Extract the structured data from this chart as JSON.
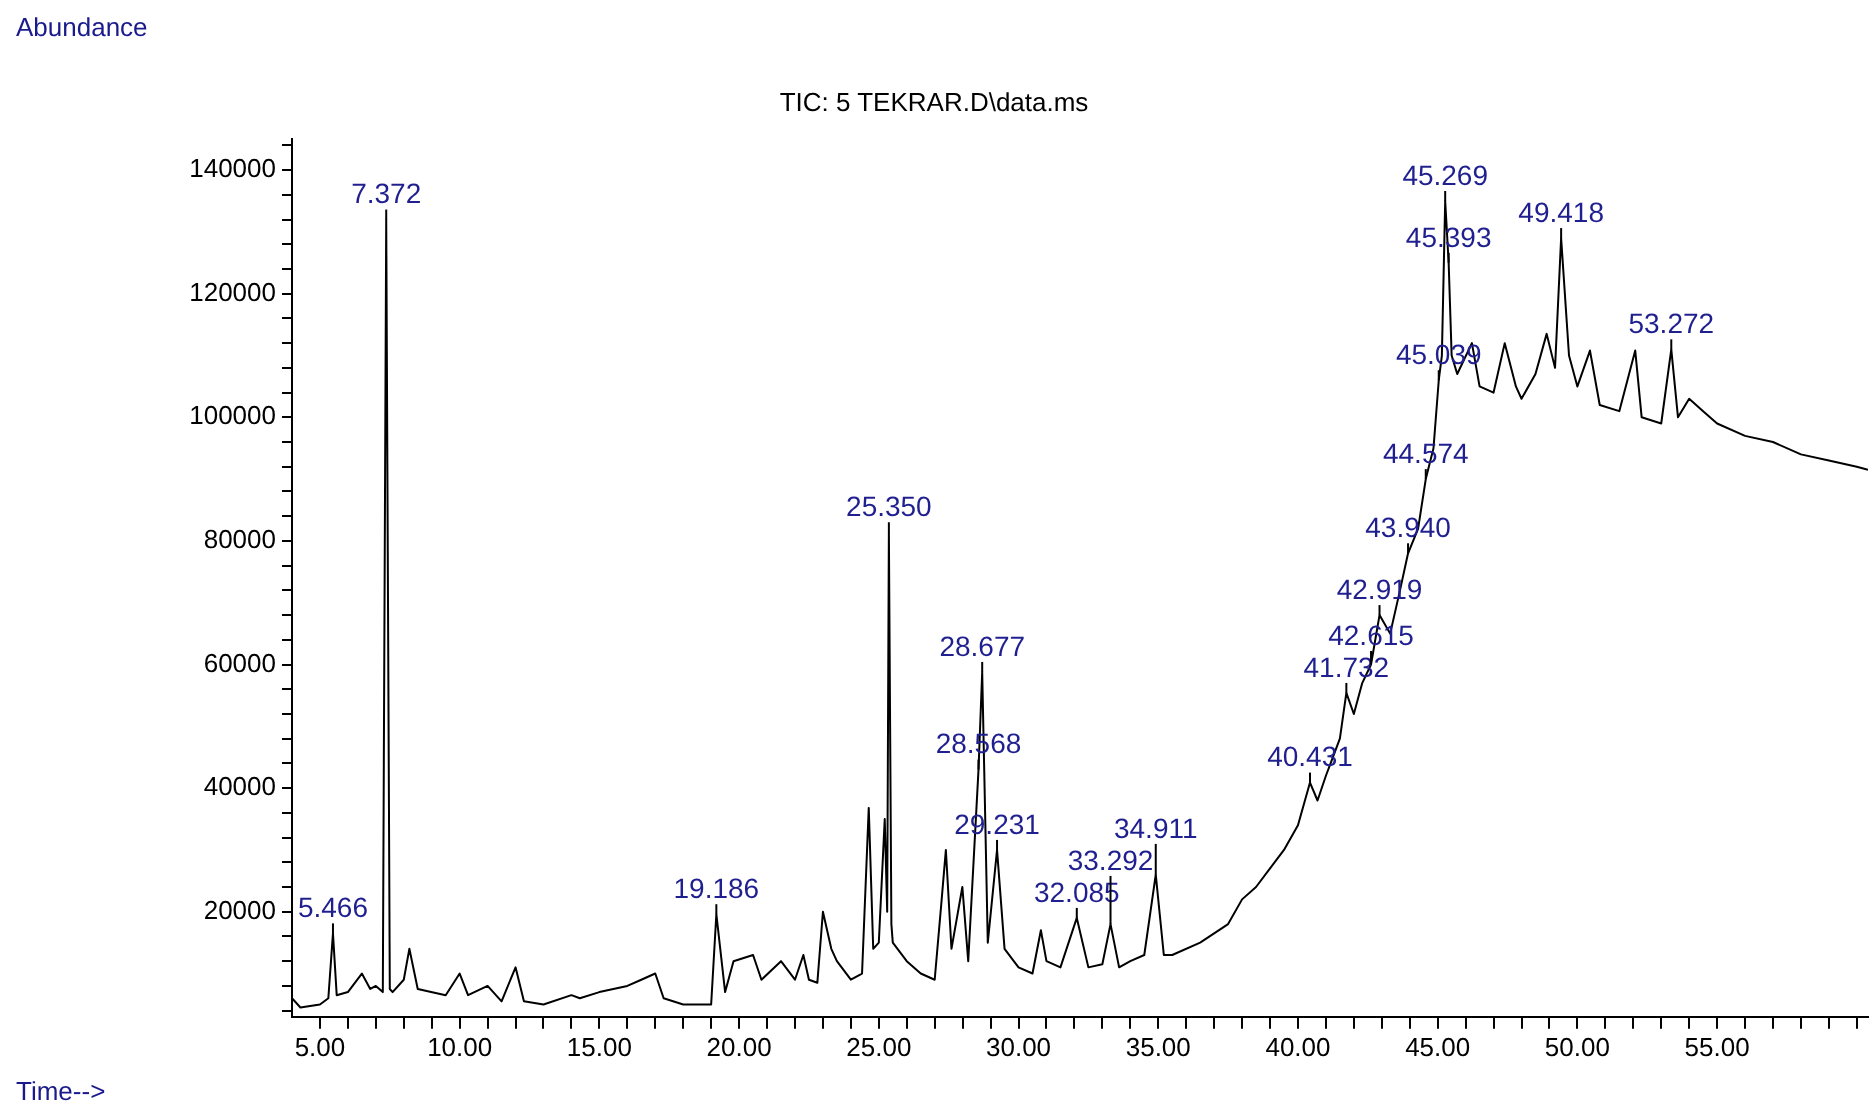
{
  "chart_data": {
    "type": "line",
    "title": "TIC: 5 TEKRAR.D\\data.ms",
    "xlabel": "Time-->",
    "ylabel": "Abundance",
    "x": [
      4.0,
      4.3,
      5.0,
      5.3,
      5.466,
      5.6,
      6.0,
      6.5,
      6.8,
      7.0,
      7.25,
      7.372,
      7.5,
      7.6,
      8.0,
      8.2,
      8.5,
      9.5,
      10.0,
      10.3,
      11.0,
      11.5,
      12.0,
      12.3,
      13.0,
      14.0,
      14.3,
      15.0,
      16.0,
      16.5,
      17.0,
      17.3,
      18.0,
      19.0,
      19.186,
      19.5,
      19.8,
      20.5,
      20.8,
      21.5,
      22.0,
      22.3,
      22.5,
      22.8,
      23.0,
      23.3,
      23.5,
      24.0,
      24.4,
      24.64,
      24.8,
      25.0,
      25.212,
      25.3,
      25.36,
      25.45,
      25.5,
      26.0,
      26.5,
      27.0,
      27.25,
      27.4,
      27.6,
      27.99,
      28.2,
      28.568,
      28.7,
      28.9,
      29.231,
      29.5,
      30.0,
      30.5,
      30.8,
      31.0,
      31.5,
      32.085,
      32.5,
      33.0,
      33.292,
      33.6,
      34.0,
      34.5,
      34.911,
      35.2,
      35.5,
      36.5,
      37.5,
      38.0,
      38.5,
      39.0,
      39.5,
      40.0,
      40.431,
      40.7,
      41.0,
      41.5,
      41.732,
      42.0,
      42.3,
      42.615,
      42.919,
      43.3,
      43.651,
      43.94,
      44.3,
      44.574,
      44.85,
      45.039,
      45.15,
      45.269,
      45.393,
      45.5,
      45.7,
      46.225,
      46.5,
      47.0,
      47.4,
      47.8,
      48.0,
      48.5,
      48.9,
      49.2,
      49.418,
      49.7,
      50.0,
      50.45,
      50.8,
      51.5,
      52.07,
      52.3,
      53.0,
      53.36,
      53.6,
      54.0,
      54.5,
      55.0,
      56.0,
      57.0,
      58.0,
      59.0,
      60.0,
      60.4
    ],
    "values": [
      6000,
      4500,
      5000,
      6000,
      16500,
      6500,
      7000,
      10000,
      7500,
      8000,
      7000,
      132000,
      7500,
      7000,
      9000,
      14000,
      7500,
      6500,
      10000,
      6500,
      8000,
      5500,
      11000,
      5500,
      5000,
      6500,
      6000,
      7000,
      8000,
      9000,
      10000,
      6000,
      5000,
      5000,
      19600,
      7000,
      12000,
      13000,
      9000,
      12000,
      9000,
      13000,
      9000,
      8500,
      20000,
      14000,
      12000,
      9000,
      10000,
      36800,
      14000,
      15000,
      35000,
      20000,
      81400,
      18000,
      15000,
      12000,
      10000,
      9000,
      22000,
      30000,
      14000,
      24000,
      12000,
      43000,
      58800,
      15000,
      30000,
      14000,
      11000,
      10000,
      17000,
      12000,
      11000,
      19000,
      11000,
      11500,
      18000,
      11000,
      12000,
      13000,
      26000,
      13000,
      13000,
      15000,
      18000,
      22000,
      24000,
      27000,
      30000,
      34000,
      40900,
      38000,
      42000,
      48000,
      55400,
      52000,
      57000,
      60000,
      68000,
      65000,
      72000,
      78000,
      82000,
      90000,
      95000,
      106000,
      110000,
      135000,
      125000,
      110000,
      107000,
      112000,
      105000,
      104000,
      112000,
      105000,
      103000,
      107000,
      113500,
      108000,
      129000,
      110000,
      105000,
      110800,
      102000,
      101000,
      110800,
      100000,
      99000,
      111000,
      100000,
      103000,
      101000,
      99000,
      97000,
      96000,
      94000,
      93000,
      92000,
      91500
    ],
    "color": "#000000",
    "marker": "none",
    "line_style": "solid",
    "legend": false,
    "grid": false,
    "xlim": [
      4,
      60.4
    ],
    "ylim": [
      3000,
      145000
    ],
    "xticks": [
      {
        "value": 5,
        "label": "5.00"
      },
      {
        "value": 6,
        "label": null
      },
      {
        "value": 7,
        "label": null
      },
      {
        "value": 8,
        "label": null
      },
      {
        "value": 9,
        "label": null
      },
      {
        "value": 10,
        "label": "10.00"
      },
      {
        "value": 11,
        "label": null
      },
      {
        "value": 12,
        "label": null
      },
      {
        "value": 13,
        "label": null
      },
      {
        "value": 14,
        "label": null
      },
      {
        "value": 15,
        "label": "15.00"
      },
      {
        "value": 16,
        "label": null
      },
      {
        "value": 17,
        "label": null
      },
      {
        "value": 18,
        "label": null
      },
      {
        "value": 19,
        "label": null
      },
      {
        "value": 20,
        "label": "20.00"
      },
      {
        "value": 21,
        "label": null
      },
      {
        "value": 22,
        "label": null
      },
      {
        "value": 23,
        "label": null
      },
      {
        "value": 24,
        "label": null
      },
      {
        "value": 25,
        "label": "25.00"
      },
      {
        "value": 26,
        "label": null
      },
      {
        "value": 27,
        "label": null
      },
      {
        "value": 28,
        "label": null
      },
      {
        "value": 29,
        "label": null
      },
      {
        "value": 30,
        "label": "30.00"
      },
      {
        "value": 31,
        "label": null
      },
      {
        "value": 32,
        "label": null
      },
      {
        "value": 33,
        "label": null
      },
      {
        "value": 34,
        "label": null
      },
      {
        "value": 35,
        "label": "35.00"
      },
      {
        "value": 36,
        "label": null
      },
      {
        "value": 37,
        "label": null
      },
      {
        "value": 38,
        "label": null
      },
      {
        "value": 39,
        "label": null
      },
      {
        "value": 40,
        "label": "40.00"
      },
      {
        "value": 41,
        "label": null
      },
      {
        "value": 42,
        "label": null
      },
      {
        "value": 43,
        "label": null
      },
      {
        "value": 44,
        "label": null
      },
      {
        "value": 45,
        "label": "45.00"
      },
      {
        "value": 46,
        "label": null
      },
      {
        "value": 47,
        "label": null
      },
      {
        "value": 48,
        "label": null
      },
      {
        "value": 49,
        "label": null
      },
      {
        "value": 50,
        "label": "50.00"
      },
      {
        "value": 51,
        "label": null
      },
      {
        "value": 52,
        "label": null
      },
      {
        "value": 53,
        "label": null
      },
      {
        "value": 54,
        "label": null
      },
      {
        "value": 55,
        "label": "55.00"
      },
      {
        "value": 56,
        "label": null
      },
      {
        "value": 57,
        "label": null
      },
      {
        "value": 58,
        "label": null
      },
      {
        "value": 59,
        "label": null
      },
      {
        "value": 60,
        "label": null
      }
    ],
    "yticks": [
      {
        "value": 4000,
        "label": null
      },
      {
        "value": 8000,
        "label": null
      },
      {
        "value": 12000,
        "label": null
      },
      {
        "value": 16000,
        "label": null
      },
      20000,
      {
        "value": 24000,
        "label": null
      },
      {
        "value": 28000,
        "label": null
      },
      {
        "value": 32000,
        "label": null
      },
      {
        "value": 36000,
        "label": null
      },
      40000,
      {
        "value": 44000,
        "label": null
      },
      {
        "value": 48000,
        "label": null
      },
      {
        "value": 52000,
        "label": null
      },
      {
        "value": 56000,
        "label": null
      },
      60000,
      {
        "value": 64000,
        "label": null
      },
      {
        "value": 68000,
        "label": null
      },
      {
        "value": 72000,
        "label": null
      },
      {
        "value": 76000,
        "label": null
      },
      80000,
      {
        "value": 84000,
        "label": null
      },
      {
        "value": 88000,
        "label": null
      },
      {
        "value": 92000,
        "label": null
      },
      {
        "value": 96000,
        "label": null
      },
      100000,
      {
        "value": 104000,
        "label": null
      },
      {
        "value": 108000,
        "label": null
      },
      {
        "value": 112000,
        "label": null
      },
      {
        "value": 116000,
        "label": null
      },
      120000,
      {
        "value": 124000,
        "label": null
      },
      {
        "value": 128000,
        "label": null
      },
      {
        "value": 132000,
        "label": null
      },
      {
        "value": 136000,
        "label": null
      },
      140000,
      {
        "value": 144000,
        "label": null
      }
    ],
    "annotations": [
      {
        "text": "5.466",
        "x": 5.466,
        "y": 16500
      },
      {
        "text": "7.372",
        "x": 7.372,
        "y": 132000
      },
      {
        "text": "19.186",
        "x": 19.186,
        "y": 19600
      },
      {
        "text": "25.350",
        "x": 25.36,
        "y": 81400
      },
      {
        "text": "28.568",
        "x": 28.568,
        "y": 43000
      },
      {
        "text": "28.677",
        "x": 28.7,
        "y": 58800
      },
      {
        "text": "29.231",
        "x": 29.231,
        "y": 30000
      },
      {
        "text": "32.085",
        "x": 32.085,
        "y": 19000
      },
      {
        "text": "33.292",
        "x": 33.292,
        "y": 18000
      },
      {
        "text": "34.911",
        "x": 34.911,
        "y": 26000
      },
      {
        "text": "40.431",
        "x": 40.431,
        "y": 40900
      },
      {
        "text": "41.732",
        "x": 41.732,
        "y": 55400
      },
      {
        "text": "42.615",
        "x": 42.615,
        "y": 60000
      },
      {
        "text": "42.919",
        "x": 42.919,
        "y": 68000
      },
      {
        "text": "43.940",
        "x": 43.94,
        "y": 78000
      },
      {
        "text": "44.574",
        "x": 44.574,
        "y": 90000
      },
      {
        "text": "45.039",
        "x": 45.039,
        "y": 106000
      },
      {
        "text": "45.393",
        "x": 45.393,
        "y": 125000
      },
      {
        "text": "45.269",
        "x": 45.269,
        "y": 135000
      },
      {
        "text": "49.418",
        "x": 49.418,
        "y": 129000
      },
      {
        "text": "53.272",
        "x": 53.36,
        "y": 111000
      }
    ]
  }
}
